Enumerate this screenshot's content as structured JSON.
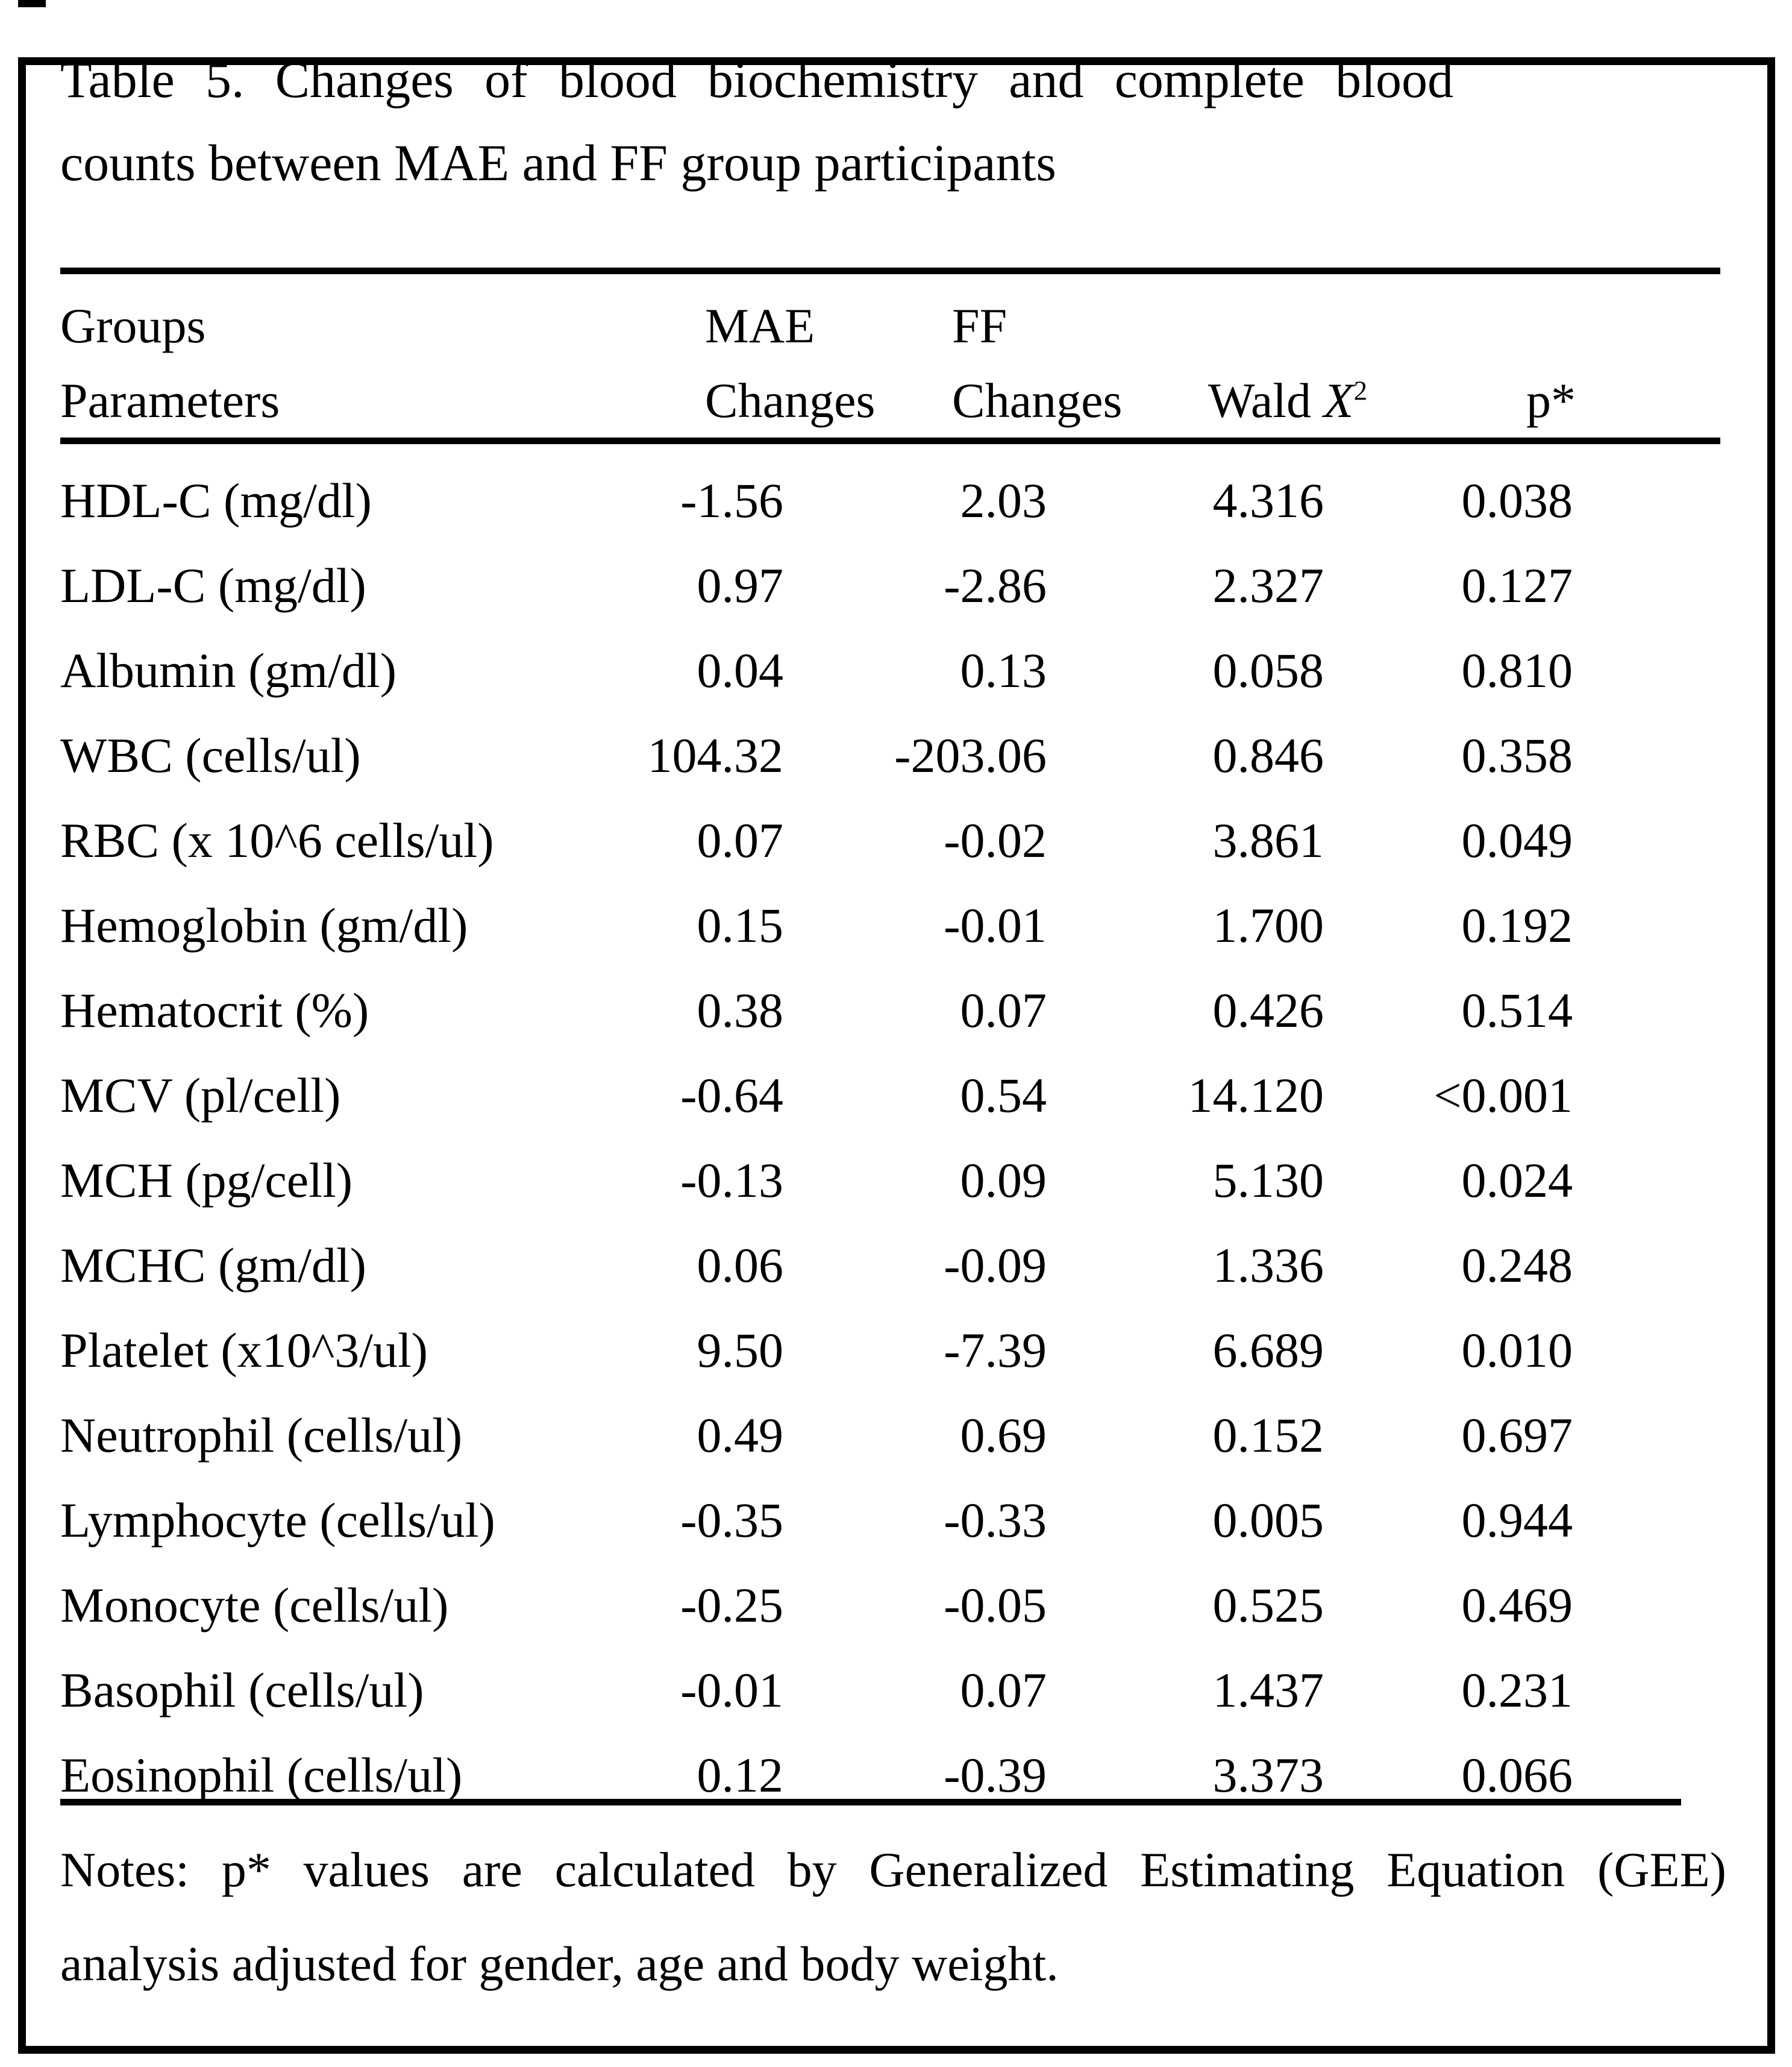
{
  "page": {
    "background_color": "#ffffff",
    "ink_color": "#000000"
  },
  "title": {
    "line1": "Table 5. Changes of blood biochemistry and complete blood",
    "line2": "counts between MAE and FF group participants"
  },
  "table": {
    "header": {
      "groups": "Groups",
      "parameters": "Parameters",
      "mae": "MAE",
      "mae_changes": "Changes",
      "ff": "FF",
      "ff_changes": "Changes",
      "wald_word": "Wald ",
      "wald_x": "X",
      "wald_sup": "2",
      "p": "p*"
    },
    "rows": [
      {
        "param": "HDL-C (mg/dl)",
        "mae": "-1.56",
        "ff": "2.03",
        "wald": "4.316",
        "p": "0.038"
      },
      {
        "param": "LDL-C (mg/dl)",
        "mae": "0.97",
        "ff": "-2.86",
        "wald": "2.327",
        "p": "0.127"
      },
      {
        "param": "Albumin (gm/dl)",
        "mae": "0.04",
        "ff": "0.13",
        "wald": "0.058",
        "p": "0.810"
      },
      {
        "param": "WBC (cells/ul)",
        "mae": "104.32",
        "ff": "-203.06",
        "wald": "0.846",
        "p": "0.358"
      },
      {
        "param": "RBC (x 10^6 cells/ul)",
        "mae": "0.07",
        "ff": "-0.02",
        "wald": "3.861",
        "p": "0.049"
      },
      {
        "param": "Hemoglobin (gm/dl)",
        "mae": "0.15",
        "ff": "-0.01",
        "wald": "1.700",
        "p": "0.192"
      },
      {
        "param": "Hematocrit (%)",
        "mae": "0.38",
        "ff": "0.07",
        "wald": "0.426",
        "p": "0.514"
      },
      {
        "param": "MCV (pl/cell)",
        "mae": "-0.64",
        "ff": "0.54",
        "wald": "14.120",
        "p": "<0.001"
      },
      {
        "param": "MCH (pg/cell)",
        "mae": "-0.13",
        "ff": "0.09",
        "wald": "5.130",
        "p": "0.024"
      },
      {
        "param": "MCHC (gm/dl)",
        "mae": "0.06",
        "ff": "-0.09",
        "wald": "1.336",
        "p": "0.248"
      },
      {
        "param": "Platelet (x10^3/ul)",
        "mae": "9.50",
        "ff": "-7.39",
        "wald": "6.689",
        "p": "0.010"
      },
      {
        "param": "Neutrophil (cells/ul)",
        "mae": "0.49",
        "ff": "0.69",
        "wald": "0.152",
        "p": "0.697"
      },
      {
        "param": "Lymphocyte (cells/ul)",
        "mae": "-0.35",
        "ff": "-0.33",
        "wald": "0.005",
        "p": "0.944"
      },
      {
        "param": "Monocyte (cells/ul)",
        "mae": "-0.25",
        "ff": "-0.05",
        "wald": "0.525",
        "p": "0.469"
      },
      {
        "param": "Basophil (cells/ul)",
        "mae": "-0.01",
        "ff": "0.07",
        "wald": "1.437",
        "p": "0.231"
      },
      {
        "param": "Eosinophil (cells/ul)",
        "mae": "0.12",
        "ff": "-0.39",
        "wald": "3.373",
        "p": "0.066"
      }
    ]
  },
  "notes": {
    "line1": "Notes: p* values are calculated by Generalized Estimating Equation (GEE)",
    "line2": "analysis adjusted for gender, age and body weight."
  }
}
